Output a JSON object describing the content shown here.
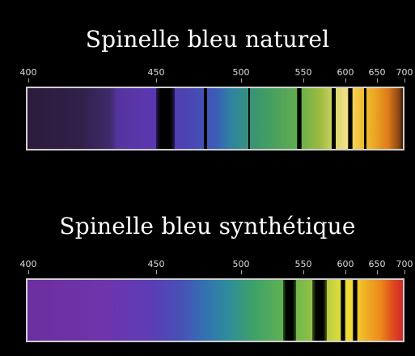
{
  "spectrum_1": {
    "title": "Spinelle bleu naturel",
    "scale": [
      "400",
      "450",
      "500",
      "550",
      "600",
      "650",
      "700"
    ]
  },
  "spectrum_2": {
    "title": "Spinelle bleu synthétique",
    "scale": [
      "400",
      "450",
      "500",
      "550",
      "600",
      "650",
      "700"
    ]
  },
  "absorption_bands_nm": {
    "spectrum_1": [
      [
        450,
        461
      ],
      [
        478,
        480
      ],
      [
        506,
        507
      ],
      [
        545,
        549
      ],
      [
        584,
        588
      ],
      [
        604,
        612
      ],
      [
        630,
        633
      ]
    ],
    "spectrum_2": [
      [
        534,
        544
      ],
      [
        561,
        578
      ],
      [
        594,
        600
      ],
      [
        612,
        619
      ]
    ]
  }
}
